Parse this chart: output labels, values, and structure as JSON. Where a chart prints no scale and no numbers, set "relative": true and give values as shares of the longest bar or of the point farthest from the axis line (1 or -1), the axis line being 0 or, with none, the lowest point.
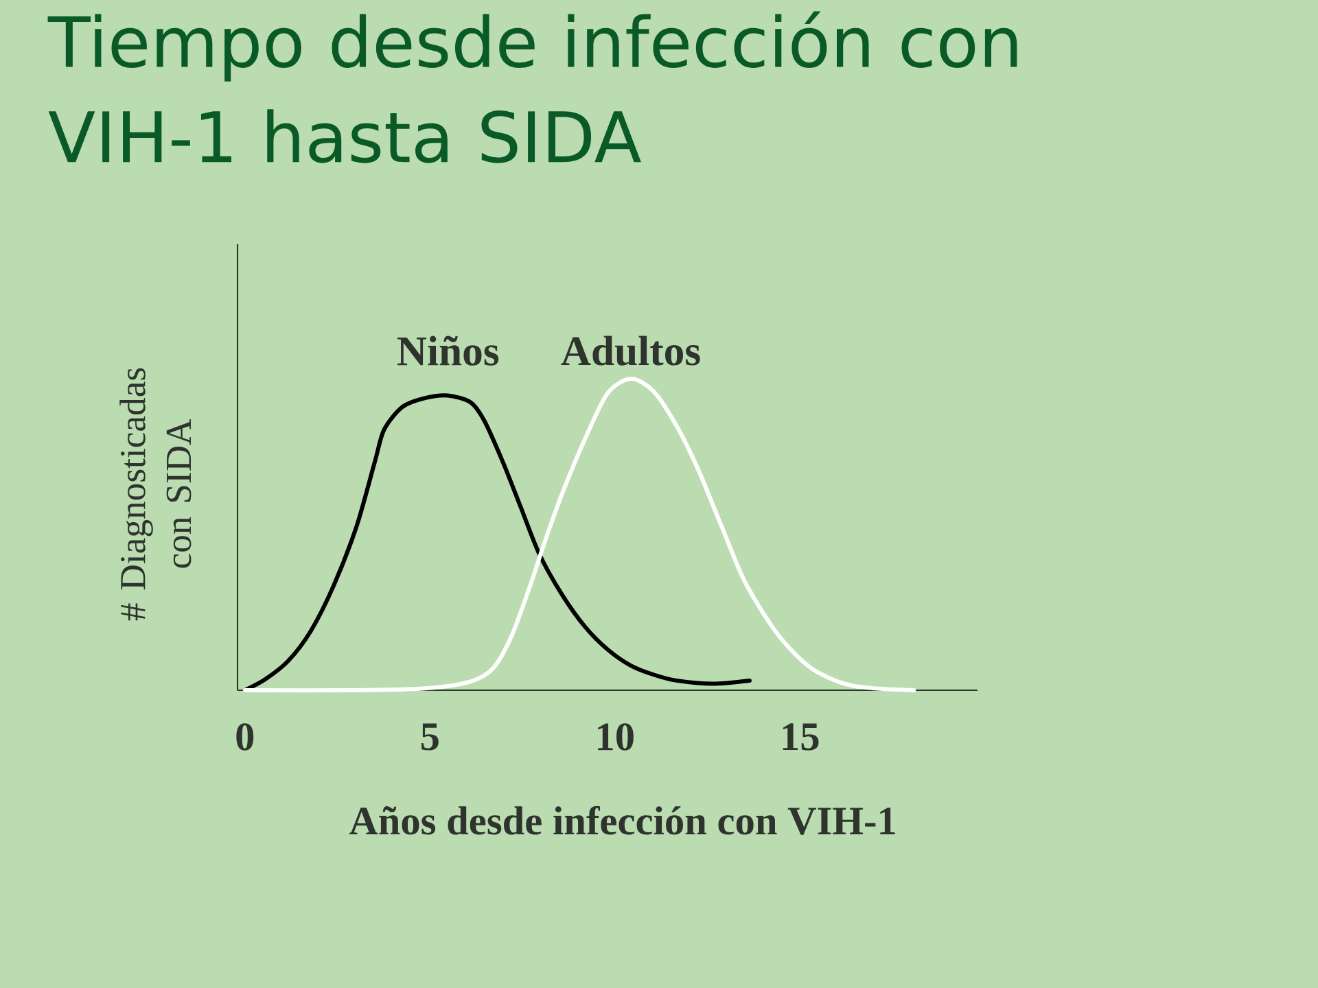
{
  "chart_data": {
    "type": "line",
    "title": "Tiempo desde infección con VIH-1 hasta SIDA",
    "xlabel": "Años desde infección con VIH-1",
    "ylabel": "# Diagnosticadas con SIDA",
    "relative": true,
    "xlim": [
      -0.2,
      19.8
    ],
    "xticks": [
      0,
      5,
      10,
      15
    ],
    "legend": false,
    "marker": "none",
    "line_style": "solid",
    "series": [
      {
        "name": "Niños",
        "color": "#000000",
        "x": [
          0,
          0.55,
          1.17,
          1.78,
          2.4,
          3.02,
          3.51,
          3.76,
          4.25,
          4.87,
          5.49,
          6.1,
          6.47,
          6.97,
          7.46,
          7.95,
          8.57,
          9.19,
          9.8,
          10.43,
          11.04,
          11.66,
          12.65,
          13.64
        ],
        "values": [
          0,
          0.035,
          0.094,
          0.19,
          0.336,
          0.527,
          0.733,
          0.836,
          0.909,
          0.938,
          0.946,
          0.924,
          0.865,
          0.733,
          0.586,
          0.439,
          0.307,
          0.204,
          0.131,
          0.079,
          0.05,
          0.031,
          0.021,
          0.031
        ]
      },
      {
        "name": "Adultos",
        "color": "#ffffff",
        "x": [
          0,
          3.02,
          4.87,
          6.1,
          6.72,
          7.21,
          7.71,
          8.08,
          8.57,
          9.19,
          9.8,
          10.43,
          11.04,
          11.66,
          12.27,
          12.88,
          13.5,
          14.25,
          14.87,
          15.49,
          16.47,
          18.08
        ],
        "values": [
          0,
          0,
          0.006,
          0.028,
          0.072,
          0.175,
          0.336,
          0.468,
          0.63,
          0.806,
          0.953,
          1.0,
          0.96,
          0.85,
          0.703,
          0.527,
          0.351,
          0.204,
          0.116,
          0.057,
          0.013,
          0
        ]
      }
    ]
  }
}
